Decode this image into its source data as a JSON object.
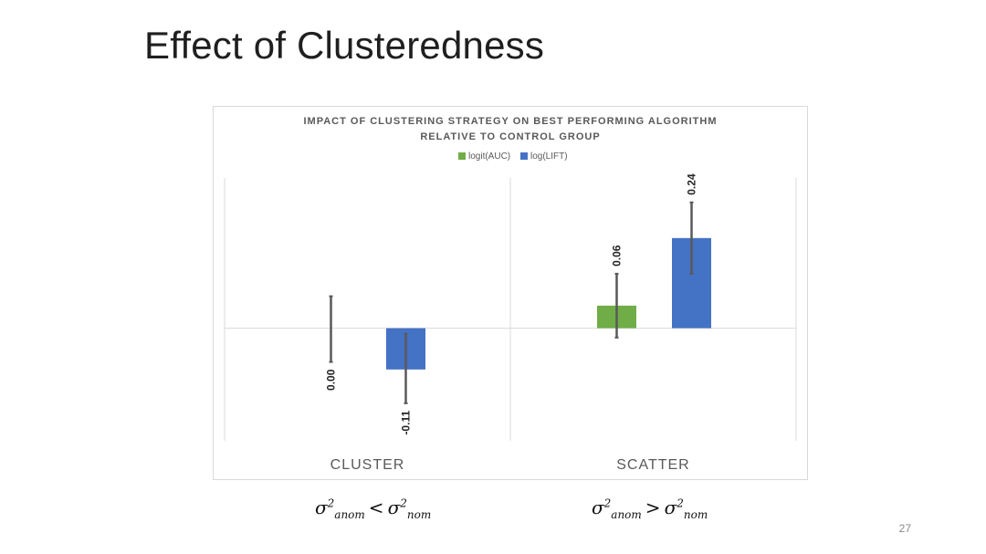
{
  "slide": {
    "title": "Effect of Clusteredness",
    "page_number": "27"
  },
  "chart_data": {
    "type": "bar",
    "title_line1": "IMPACT OF CLUSTERING STRATEGY ON BEST PERFORMING ALGORITHM",
    "title_line2": "RELATIVE TO CONTROL GROUP",
    "categories": [
      "CLUSTER",
      "SCATTER"
    ],
    "series": [
      {
        "name": "logit(AUC)",
        "color": "#70ad47",
        "values": [
          0.0,
          0.06
        ],
        "labels": [
          "0.00",
          "0.06"
        ],
        "error_low": [
          -0.09,
          -0.025
        ],
        "error_high": [
          0.085,
          0.145
        ]
      },
      {
        "name": "log(LIFT)",
        "color": "#4472c4",
        "values": [
          -0.11,
          0.24
        ],
        "labels": [
          "-0.11",
          "0.24"
        ],
        "error_low": [
          -0.2,
          0.145
        ],
        "error_high": [
          -0.015,
          0.335
        ]
      }
    ],
    "ylim": [
      -0.3,
      0.4
    ],
    "gridlines": false,
    "legend_position": "top"
  },
  "annotations": {
    "cluster_condition": {
      "sigma": "σ",
      "sup": "2",
      "sub_left": "anom",
      "op": "<",
      "sub_right": "nom"
    },
    "scatter_condition": {
      "sigma": "σ",
      "sup": "2",
      "sub_left": "anom",
      "op": ">",
      "sub_right": "nom"
    }
  }
}
